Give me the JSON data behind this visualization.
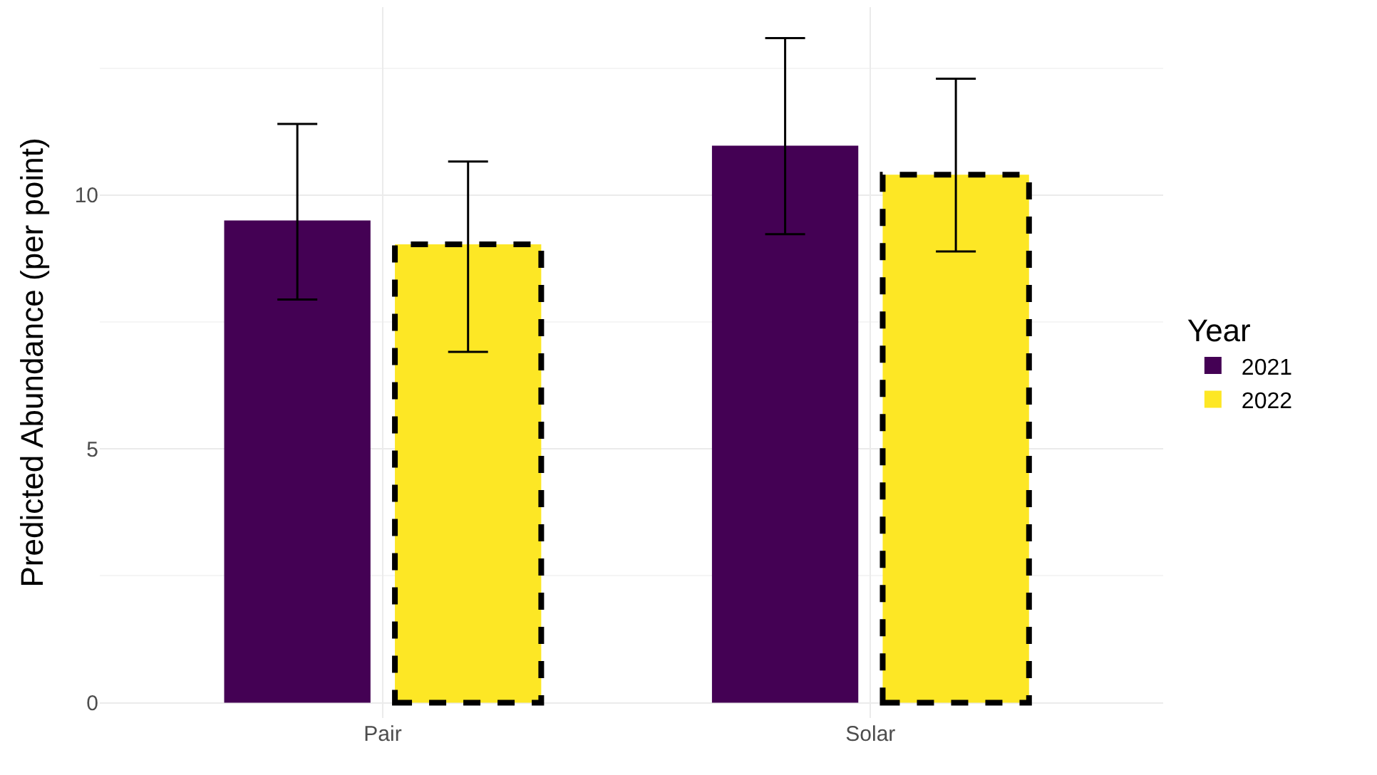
{
  "chart_data": {
    "type": "bar",
    "ylabel": "Predicted Abundance (per point)",
    "legend_title": "Year",
    "categories": [
      "Pair",
      "Solar"
    ],
    "series": [
      {
        "name": "2021",
        "color": "#440154",
        "values": [
          9.5,
          10.97
        ],
        "errors": [
          [
            7.94,
            11.4
          ],
          [
            9.23,
            13.09
          ]
        ]
      },
      {
        "name": "2022",
        "color": "#fde725",
        "values": [
          9.03,
          10.4
        ],
        "errors": [
          [
            6.91,
            10.66
          ],
          [
            8.89,
            12.29
          ]
        ],
        "line_style": "dashed"
      }
    ],
    "ylim": [
      -0.3,
      13.7
    ],
    "yticks": [
      0,
      5,
      10
    ],
    "grid": true,
    "legend": "right"
  }
}
